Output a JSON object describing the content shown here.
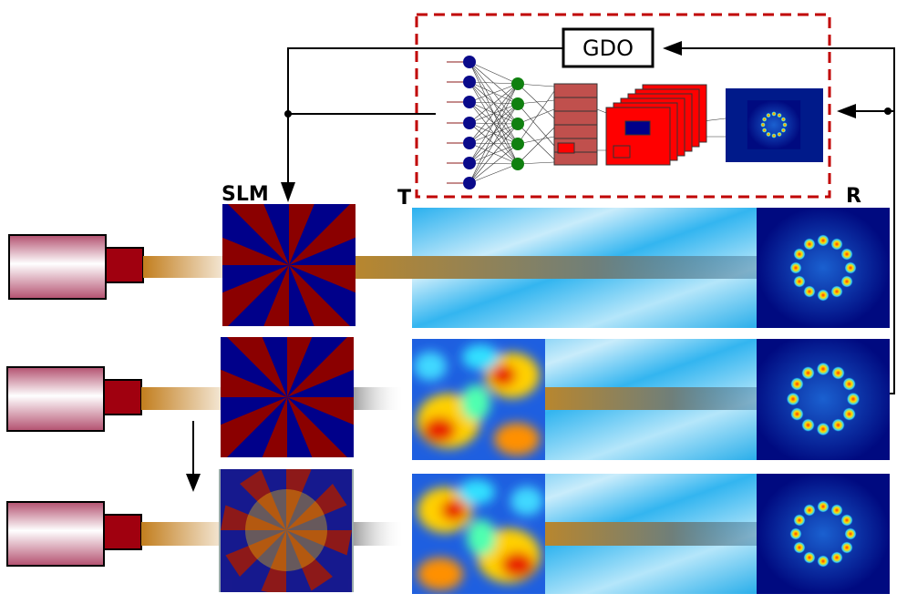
{
  "labels": {
    "gdo": "GDO",
    "slm": "SLM",
    "t": "T",
    "r": "R"
  }
}
